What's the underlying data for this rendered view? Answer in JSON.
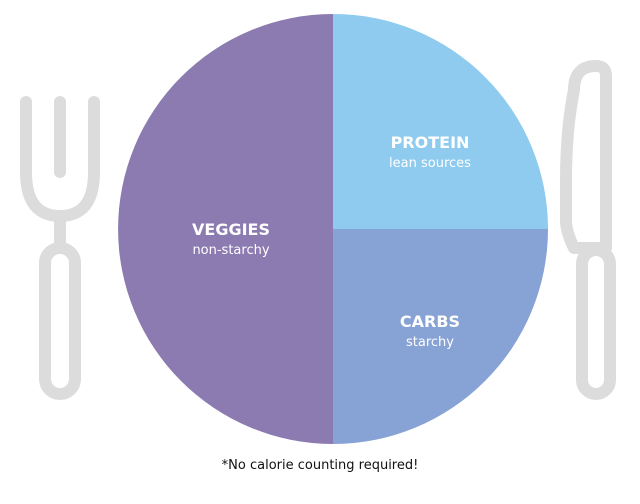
{
  "plate": {
    "sections": [
      {
        "id": "veggies",
        "title": "VEGGIES",
        "subtitle": "non-starchy",
        "color": "#8b7bb1"
      },
      {
        "id": "protein",
        "title": "PROTEIN",
        "subtitle": "lean sources",
        "color": "#8ecbef"
      },
      {
        "id": "carbs",
        "title": "CARBS",
        "subtitle": "starchy",
        "color": "#87a2d5"
      }
    ]
  },
  "utensils": {
    "fork": {
      "icon": "fork-icon",
      "color": "#dcdcdc"
    },
    "knife": {
      "icon": "knife-icon",
      "color": "#dcdcdc"
    }
  },
  "footnote": "*No calorie counting required!"
}
